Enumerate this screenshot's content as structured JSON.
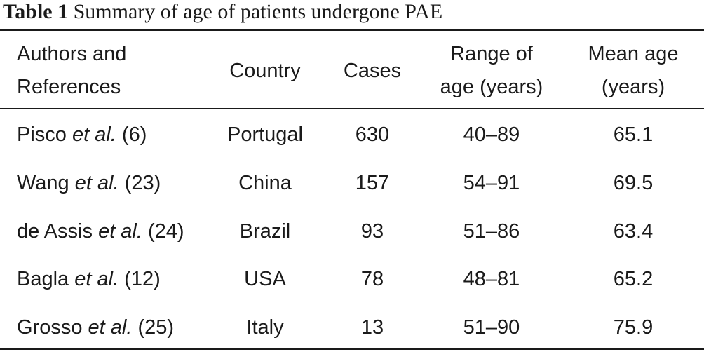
{
  "caption": {
    "label": "Table 1",
    "text": " Summary of age of patients undergone PAE"
  },
  "table": {
    "headers": [
      [
        "Authors and",
        "References"
      ],
      [
        "Country"
      ],
      [
        "Cases"
      ],
      [
        "Range of",
        "age (years)"
      ],
      [
        "Mean age",
        "(years)"
      ]
    ],
    "rows": [
      {
        "author": "Pisco ",
        "etal": "et al.",
        "ref": " (6)",
        "country": "Portugal",
        "cases": "630",
        "range": "40–89",
        "mean": "65.1"
      },
      {
        "author": "Wang ",
        "etal": "et al.",
        "ref": " (23)",
        "country": "China",
        "cases": "157",
        "range": "54–91",
        "mean": "69.5"
      },
      {
        "author": "de Assis ",
        "etal": "et al.",
        "ref": " (24)",
        "country": "Brazil",
        "cases": "93",
        "range": "51–86",
        "mean": "63.4"
      },
      {
        "author": "Bagla ",
        "etal": "et al.",
        "ref": " (12)",
        "country": "USA",
        "cases": "78",
        "range": "48–81",
        "mean": "65.2"
      },
      {
        "author": "Grosso ",
        "etal": "et al.",
        "ref": " (25)",
        "country": "Italy",
        "cases": "13",
        "range": "51–90",
        "mean": "75.9"
      }
    ]
  }
}
